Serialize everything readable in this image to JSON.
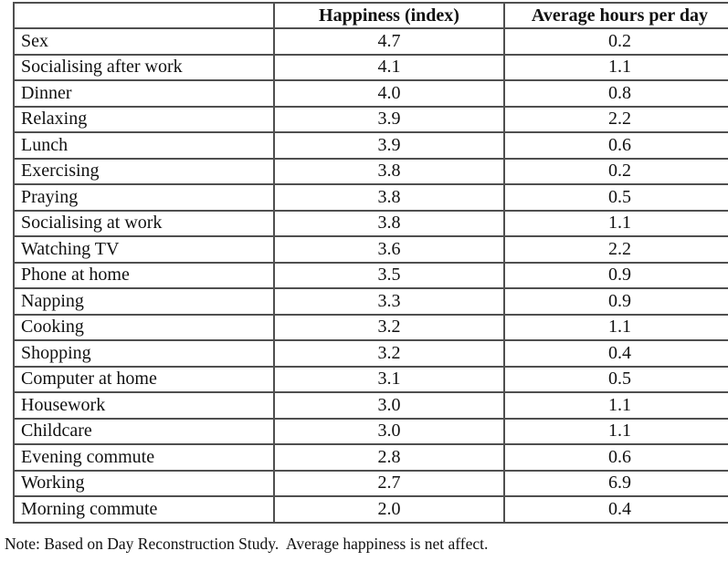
{
  "table": {
    "columns": [
      "",
      "Happiness (index)",
      "Average hours per day"
    ],
    "rows": [
      {
        "activity": "Sex",
        "happiness": "4.7",
        "hours": "0.2"
      },
      {
        "activity": "Socialising after work",
        "happiness": "4.1",
        "hours": "1.1"
      },
      {
        "activity": "Dinner",
        "happiness": "4.0",
        "hours": "0.8"
      },
      {
        "activity": "Relaxing",
        "happiness": "3.9",
        "hours": "2.2"
      },
      {
        "activity": "Lunch",
        "happiness": "3.9",
        "hours": "0.6"
      },
      {
        "activity": "Exercising",
        "happiness": "3.8",
        "hours": "0.2"
      },
      {
        "activity": "Praying",
        "happiness": "3.8",
        "hours": "0.5"
      },
      {
        "activity": "Socialising at work",
        "happiness": "3.8",
        "hours": "1.1"
      },
      {
        "activity": "Watching TV",
        "happiness": "3.6",
        "hours": "2.2"
      },
      {
        "activity": "Phone at home",
        "happiness": "3.5",
        "hours": "0.9"
      },
      {
        "activity": "Napping",
        "happiness": "3.3",
        "hours": "0.9"
      },
      {
        "activity": "Cooking",
        "happiness": "3.2",
        "hours": "1.1"
      },
      {
        "activity": "Shopping",
        "happiness": "3.2",
        "hours": "0.4"
      },
      {
        "activity": "Computer at home",
        "happiness": "3.1",
        "hours": "0.5"
      },
      {
        "activity": "Housework",
        "happiness": "3.0",
        "hours": "1.1"
      },
      {
        "activity": "Childcare",
        "happiness": "3.0",
        "hours": "1.1"
      },
      {
        "activity": "Evening commute",
        "happiness": "2.8",
        "hours": "0.6"
      },
      {
        "activity": "Working",
        "happiness": "2.7",
        "hours": "6.9"
      },
      {
        "activity": "Morning commute",
        "happiness": "2.0",
        "hours": "0.4"
      }
    ]
  },
  "note": "Note: Based on Day Reconstruction Study.  Average happiness is net affect.",
  "colors": {
    "border": "#4f4f4f",
    "text": "#111111",
    "background": "#ffffff"
  }
}
